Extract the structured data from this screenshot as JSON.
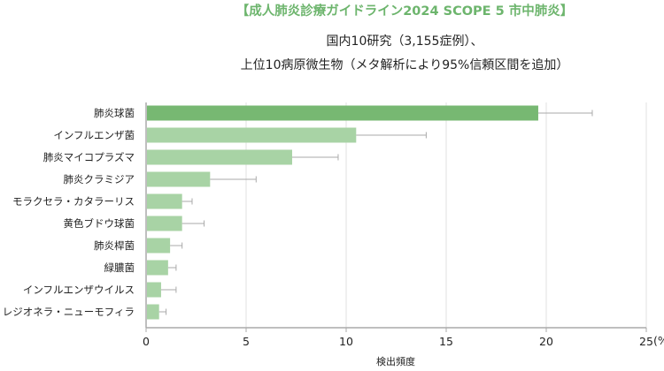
{
  "chart_data": {
    "type": "bar",
    "orientation": "horizontal",
    "title": "【成人肺炎診療ガイドライン2024 SCOPE 5 市中肺炎】",
    "subtitle_lines": [
      "国内10研究（3,155症例）、",
      "上位10病原微生物（メタ解析により95%信頼区間を追加）"
    ],
    "xlabel": "検出頻度",
    "x_unit": "(%)",
    "xlim": [
      0,
      25
    ],
    "xticks": [
      "0",
      "5",
      "10",
      "15",
      "20",
      "25"
    ],
    "grid": "vertical",
    "categories": [
      "肺炎球菌",
      "インフルエンザ菌",
      "肺炎マイコプラズマ",
      "肺炎クラミジア",
      "モラクセラ・カタラーリス",
      "黄色ブドウ球菌",
      "肺炎桿菌",
      "緑膿菌",
      "インフルエンザウイルス",
      "レジオネラ・ニューモフィラ"
    ],
    "values": [
      19.6,
      10.5,
      7.3,
      3.2,
      1.8,
      1.8,
      1.2,
      1.1,
      0.75,
      0.65
    ],
    "ci_upper": [
      22.3,
      14.0,
      9.6,
      5.5,
      2.3,
      2.9,
      1.8,
      1.5,
      1.5,
      1.0
    ],
    "colors": {
      "title": "#6db56d",
      "highlight_bar": "#77b872",
      "bar": "#a8d3a5",
      "error_bar": "#aaaaaa",
      "grid": "#e2e2e2",
      "axis": "#aaaaaa"
    }
  }
}
